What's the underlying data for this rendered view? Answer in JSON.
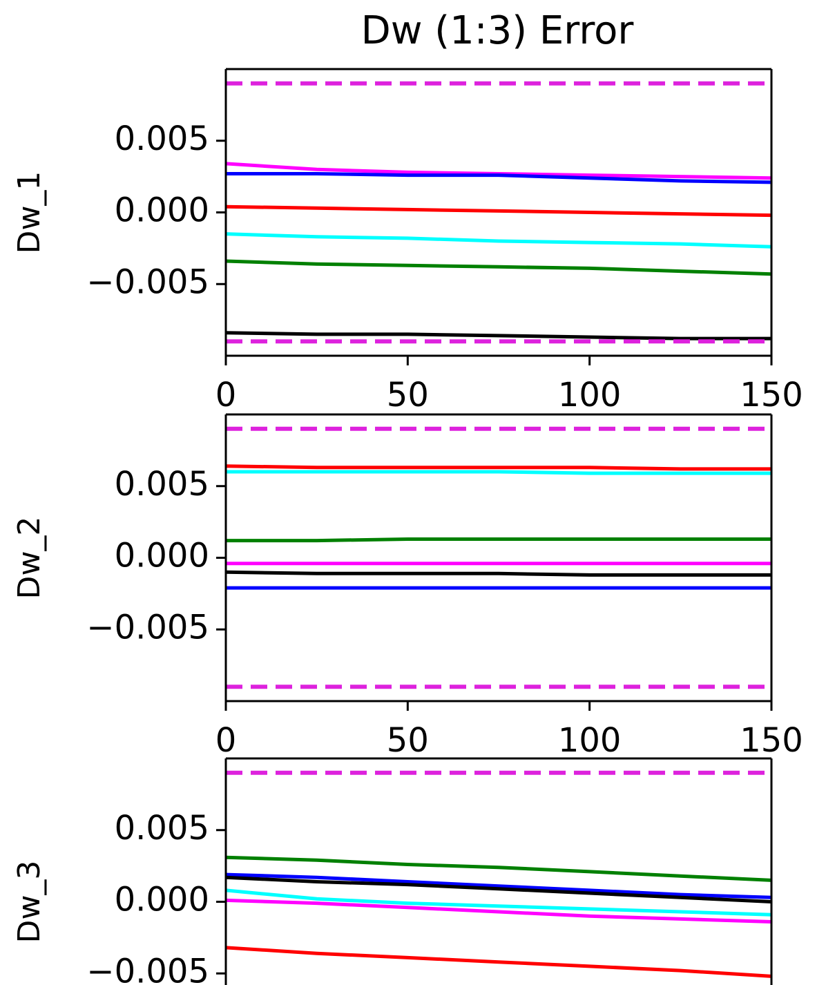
{
  "chart_data": [
    {
      "type": "line",
      "title": "Dw (1:3) Error",
      "ylabel": "Dw_1",
      "x": [
        0,
        25,
        50,
        75,
        100,
        125,
        150
      ],
      "xlim": [
        0,
        150
      ],
      "xticks": [
        0,
        50,
        100,
        150
      ],
      "ylim": [
        -0.01,
        0.01
      ],
      "yticks": [
        {
          "value": -0.005,
          "label": "−0.005"
        },
        {
          "value": 0,
          "label": "0.000"
        },
        0.005
      ],
      "bounds": [
        -0.009,
        0.009
      ],
      "bound_color": "#dd22dd",
      "series": [
        {
          "color": "#ff00ff",
          "values": [
            0.0034,
            0.003,
            0.0028,
            0.0027,
            0.0026,
            0.0025,
            0.0024
          ]
        },
        {
          "color": "#0000ff",
          "values": [
            0.0027,
            0.0027,
            0.0026,
            0.0026,
            0.0024,
            0.0022,
            0.0021
          ]
        },
        {
          "color": "#ff0000",
          "values": [
            0.0004,
            0.0003,
            0.0002,
            0.0001,
            0,
            -0.0001,
            -0.0002
          ]
        },
        {
          "color": "#00ffff",
          "values": [
            -0.0015,
            -0.0017,
            -0.0018,
            -0.002,
            -0.0021,
            -0.0022,
            -0.0024
          ]
        },
        {
          "color": "#008000",
          "values": [
            -0.0034,
            -0.0036,
            -0.0037,
            -0.0038,
            -0.0039,
            -0.0041,
            -0.0043
          ]
        },
        {
          "color": "#000000",
          "values": [
            -0.0084,
            -0.0085,
            -0.0085,
            -0.0086,
            -0.0087,
            -0.0088,
            -0.0088
          ]
        }
      ]
    },
    {
      "type": "line",
      "ylabel": "Dw_2",
      "x": [
        0,
        25,
        50,
        75,
        100,
        125,
        150
      ],
      "xlim": [
        0,
        150
      ],
      "xticks": [
        0,
        50,
        100,
        150
      ],
      "ylim": [
        -0.01,
        0.01
      ],
      "yticks": [
        {
          "value": -0.005,
          "label": "−0.005"
        },
        {
          "value": 0,
          "label": "0.000"
        },
        0.005
      ],
      "bounds": [
        -0.009,
        0.009
      ],
      "bound_color": "#dd22dd",
      "series": [
        {
          "color": "#ff0000",
          "values": [
            0.0064,
            0.0063,
            0.0063,
            0.0063,
            0.0063,
            0.0062,
            0.0062
          ]
        },
        {
          "color": "#00ffff",
          "values": [
            0.006,
            0.006,
            0.006,
            0.006,
            0.0059,
            0.0059,
            0.0059
          ]
        },
        {
          "color": "#008000",
          "values": [
            0.0012,
            0.0012,
            0.0013,
            0.0013,
            0.0013,
            0.0013,
            0.0013
          ]
        },
        {
          "color": "#ff00ff",
          "values": [
            -0.0004,
            -0.0004,
            -0.0004,
            -0.0004,
            -0.0004,
            -0.0004,
            -0.0004
          ]
        },
        {
          "color": "#000000",
          "values": [
            -0.001,
            -0.0011,
            -0.0011,
            -0.0011,
            -0.0012,
            -0.0012,
            -0.0012
          ]
        },
        {
          "color": "#0000ff",
          "values": [
            -0.0021,
            -0.0021,
            -0.0021,
            -0.0021,
            -0.0021,
            -0.0021,
            -0.0021
          ]
        }
      ]
    },
    {
      "type": "line",
      "ylabel": "Dw_3",
      "x": [
        0,
        25,
        50,
        75,
        100,
        125,
        150
      ],
      "xlim": [
        0,
        150
      ],
      "ylim": [
        -0.01,
        0.01
      ],
      "yticks": [
        {
          "value": -0.005,
          "label": "−0.005"
        },
        {
          "value": 0,
          "label": "0.000"
        },
        0.005
      ],
      "bounds": [
        0.009
      ],
      "bound_color": "#dd22dd",
      "series": [
        {
          "color": "#008000",
          "values": [
            0.0031,
            0.0029,
            0.0026,
            0.0024,
            0.0021,
            0.0018,
            0.0015
          ]
        },
        {
          "color": "#0000ff",
          "values": [
            0.0019,
            0.0017,
            0.0014,
            0.0011,
            0.0008,
            0.0005,
            0.0003
          ]
        },
        {
          "color": "#000000",
          "values": [
            0.0017,
            0.0014,
            0.0012,
            0.0009,
            0.0006,
            0.0003,
            0
          ]
        },
        {
          "color": "#00ffff",
          "values": [
            0.0008,
            0.0002,
            -0.0001,
            -0.0003,
            -0.0005,
            -0.0007,
            -0.0009
          ]
        },
        {
          "color": "#ff00ff",
          "values": [
            0.0001,
            -0.0001,
            -0.0004,
            -0.0007,
            -0.001,
            -0.0012,
            -0.0014
          ]
        },
        {
          "color": "#ff0000",
          "values": [
            -0.0032,
            -0.0036,
            -0.0039,
            -0.0042,
            -0.0045,
            -0.0048,
            -0.0052
          ]
        }
      ]
    }
  ]
}
